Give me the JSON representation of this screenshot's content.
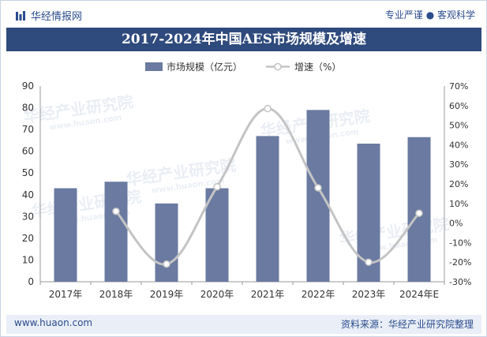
{
  "header": {
    "brand": "华经情报网",
    "tagline": "专业严谨 ● 客观科学"
  },
  "title": "2017-2024年中国AES市场规模及增速",
  "footer": {
    "website": "www.huaon.com",
    "source": "资料来源：华经产业研究院整理"
  },
  "watermark": {
    "text": "华经产业研究院",
    "url": "www.huaon.com"
  },
  "colors": {
    "bar": "#6a7aa0",
    "line": "#c4c4c4",
    "title_bg": "#2f4a7c",
    "brand": "#2b4c8c"
  },
  "chart_data": {
    "type": "bar",
    "title": "2017-2024年中国AES市场规模及增速",
    "categories": [
      "2017年",
      "2018年",
      "2019年",
      "2020年",
      "2021年",
      "2022年",
      "2023年",
      "2024年E"
    ],
    "series": [
      {
        "name": "市场规模（亿元）",
        "type": "bar",
        "axis": "left",
        "values": [
          43,
          46,
          36,
          43,
          67,
          79,
          63.5,
          66.5
        ]
      },
      {
        "name": "增速（%）",
        "type": "line",
        "axis": "right",
        "values": [
          null,
          6,
          -21,
          18.5,
          58.5,
          18,
          -20,
          5
        ]
      }
    ],
    "ylim": [
      0,
      90
    ],
    "y_ticks": [
      "0",
      "10",
      "20",
      "30",
      "40",
      "50",
      "60",
      "70",
      "80",
      "90"
    ],
    "y2lim": [
      -30,
      70
    ],
    "y2_ticks": [
      "-30%",
      "-20%",
      "-10%",
      "0%",
      "10%",
      "20%",
      "30%",
      "40%",
      "50%",
      "60%",
      "70%"
    ],
    "legend_position": "top-center",
    "grid": false
  }
}
